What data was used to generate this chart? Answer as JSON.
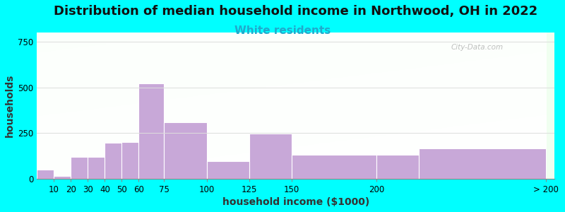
{
  "title": "Distribution of median household income in Northwood, OH in 2022",
  "subtitle": "White residents",
  "xlabel": "household income ($1000)",
  "ylabel": "households",
  "background_color": "#00FFFF",
  "bar_color": "#C8A8D8",
  "bar_edge_color": "#FFFFFF",
  "watermark": "City-Data.com",
  "bin_lefts": [
    0,
    10,
    20,
    30,
    40,
    50,
    60,
    75,
    100,
    125,
    150,
    200,
    225
  ],
  "bin_rights": [
    10,
    20,
    30,
    40,
    50,
    60,
    75,
    100,
    125,
    150,
    200,
    225,
    300
  ],
  "values": [
    50,
    15,
    120,
    120,
    195,
    200,
    520,
    310,
    95,
    245,
    130,
    130,
    165
  ],
  "xtick_positions": [
    10,
    20,
    30,
    40,
    50,
    60,
    75,
    100,
    125,
    150,
    200,
    300
  ],
  "xtick_labels": [
    "10",
    "20",
    "30",
    "40",
    "50",
    "60",
    "75",
    "100",
    "125",
    "150",
    "200",
    "> 200"
  ],
  "ylim": [
    0,
    800
  ],
  "yticks": [
    0,
    250,
    500,
    750
  ],
  "title_fontsize": 13,
  "subtitle_fontsize": 11,
  "subtitle_color": "#20AACC",
  "axis_label_fontsize": 10,
  "tick_fontsize": 8.5
}
